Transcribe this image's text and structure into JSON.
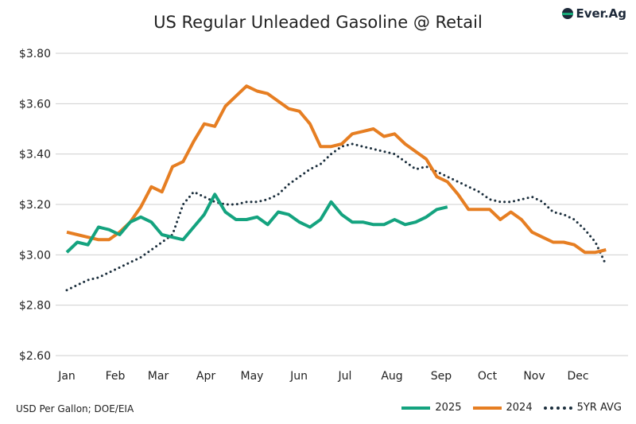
{
  "chart_data": {
    "type": "line",
    "title": "US Regular Unleaded Gasoline @ Retail",
    "source_note": "USD Per Gallon; DOE/EIA",
    "brand": "Ever.Ag",
    "x_tick_labels": [
      "Jan",
      "Feb",
      "Mar",
      "Apr",
      "May",
      "Jun",
      "Jul",
      "Aug",
      "Sep",
      "Oct",
      "Nov",
      "Dec"
    ],
    "y_tick_labels": [
      "$2.60",
      "$2.80",
      "$3.00",
      "$3.20",
      "$3.40",
      "$3.60",
      "$3.80"
    ],
    "ylim": [
      2.6,
      3.8
    ],
    "x_frequency": "weekly",
    "grid": "horizontal",
    "legend_position": "bottom-right",
    "series": [
      {
        "name": "2025",
        "color": "#14a37f",
        "style": "solid",
        "values": [
          3.01,
          3.05,
          3.04,
          3.11,
          3.1,
          3.08,
          3.13,
          3.15,
          3.13,
          3.08,
          3.07,
          3.06,
          3.11,
          3.16,
          3.24,
          3.17,
          3.14,
          3.14,
          3.15,
          3.12,
          3.17,
          3.16,
          3.13,
          3.11,
          3.14,
          3.21,
          3.16,
          3.13,
          3.13,
          3.12,
          3.12,
          3.14,
          3.12,
          3.13,
          3.15,
          3.18,
          3.19
        ]
      },
      {
        "name": "2024",
        "color": "#e67e22",
        "style": "solid",
        "values": [
          3.09,
          3.08,
          3.07,
          3.06,
          3.06,
          3.09,
          3.13,
          3.19,
          3.27,
          3.25,
          3.35,
          3.37,
          3.45,
          3.52,
          3.51,
          3.59,
          3.63,
          3.67,
          3.65,
          3.64,
          3.61,
          3.58,
          3.57,
          3.52,
          3.43,
          3.43,
          3.44,
          3.48,
          3.49,
          3.5,
          3.47,
          3.48,
          3.44,
          3.41,
          3.38,
          3.31,
          3.29,
          3.24,
          3.18,
          3.18,
          3.18,
          3.14,
          3.17,
          3.14,
          3.09,
          3.07,
          3.05,
          3.05,
          3.04,
          3.01,
          3.01,
          3.02
        ]
      },
      {
        "name": "5YR AVG",
        "color": "#1b2e3c",
        "style": "dotted",
        "values": [
          2.86,
          2.88,
          2.9,
          2.91,
          2.93,
          2.95,
          2.97,
          2.99,
          3.02,
          3.05,
          3.08,
          3.2,
          3.25,
          3.23,
          3.21,
          3.2,
          3.2,
          3.21,
          3.21,
          3.22,
          3.24,
          3.28,
          3.31,
          3.34,
          3.36,
          3.4,
          3.43,
          3.44,
          3.43,
          3.42,
          3.41,
          3.4,
          3.37,
          3.34,
          3.35,
          3.33,
          3.31,
          3.29,
          3.27,
          3.25,
          3.22,
          3.21,
          3.21,
          3.22,
          3.23,
          3.21,
          3.17,
          3.16,
          3.14,
          3.1,
          3.05,
          2.96
        ]
      }
    ]
  }
}
